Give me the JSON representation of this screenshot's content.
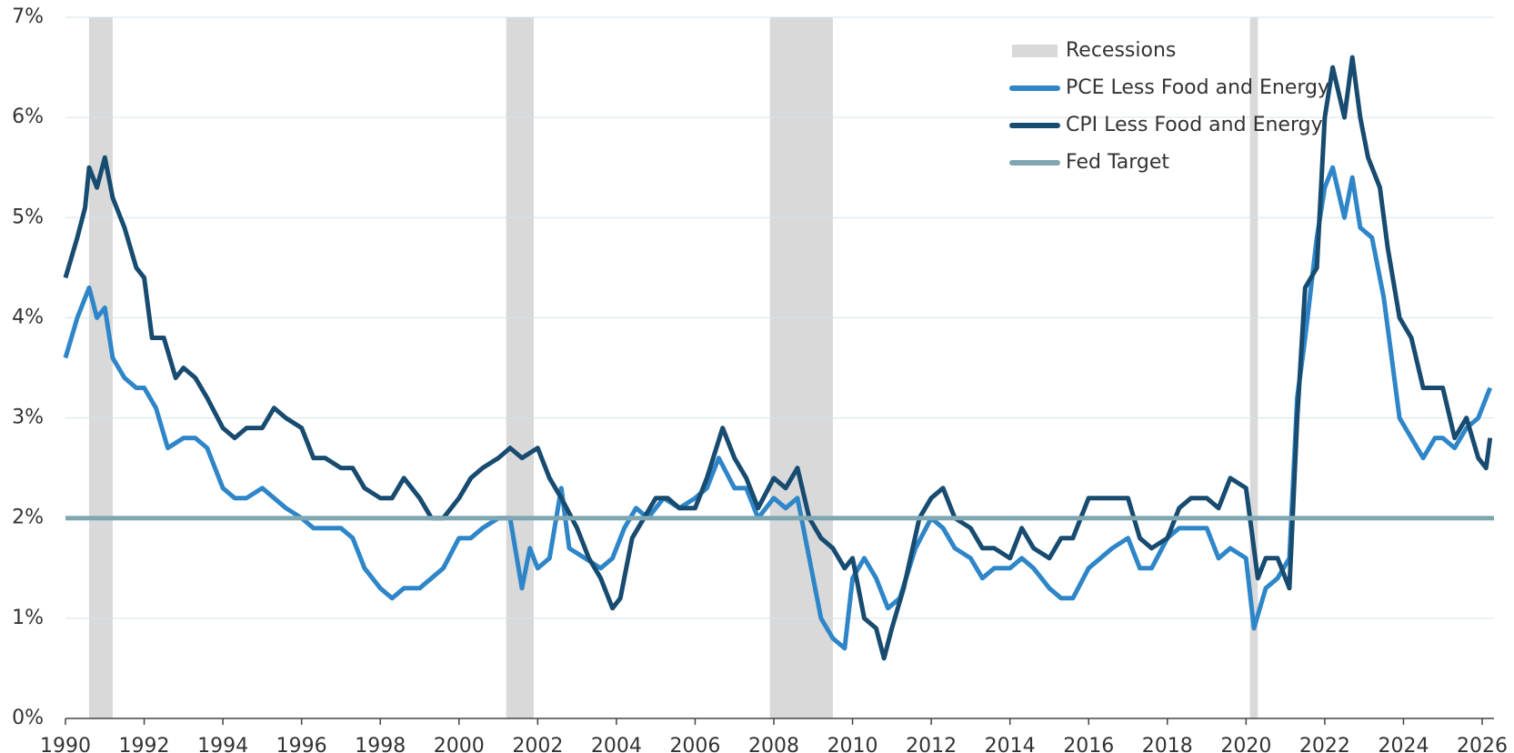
{
  "chart_data": {
    "type": "line",
    "xlim": [
      1990,
      2026.3
    ],
    "ylim": [
      0,
      7
    ],
    "xticks": [
      1990,
      1992,
      1994,
      1996,
      1998,
      2000,
      2002,
      2004,
      2006,
      2008,
      2010,
      2012,
      2014,
      2016,
      2018,
      2020,
      2022,
      2024,
      2026
    ],
    "yticks": [
      {
        "value": 0,
        "label": "0%"
      },
      {
        "value": 1,
        "label": "1%"
      },
      {
        "value": 2,
        "label": "2%"
      },
      {
        "value": 3,
        "label": "3%"
      },
      {
        "value": 4,
        "label": "4%"
      },
      {
        "value": 5,
        "label": "5%"
      },
      {
        "value": 6,
        "label": "6%"
      },
      {
        "value": 7,
        "label": "7%"
      }
    ],
    "grid": true,
    "legend": "top-right",
    "recessions": {
      "name": "Recessions",
      "color": "#d9d9d9",
      "periods": [
        [
          1990.6,
          1991.2
        ],
        [
          2001.2,
          2001.9
        ],
        [
          2007.9,
          2009.5
        ],
        [
          2020.1,
          2020.3
        ]
      ]
    },
    "series": [
      {
        "name": "PCE Less Food and Energy",
        "color": "#2e86c8",
        "x": [
          1990.0,
          1990.3,
          1990.6,
          1990.8,
          1991.0,
          1991.2,
          1991.5,
          1991.8,
          1992.0,
          1992.3,
          1992.6,
          1993.0,
          1993.3,
          1993.6,
          1994.0,
          1994.3,
          1994.6,
          1995.0,
          1995.3,
          1995.6,
          1996.0,
          1996.3,
          1996.6,
          1997.0,
          1997.3,
          1997.6,
          1998.0,
          1998.3,
          1998.6,
          1999.0,
          1999.3,
          1999.6,
          2000.0,
          2000.3,
          2000.6,
          2001.0,
          2001.3,
          2001.6,
          2001.8,
          2002.0,
          2002.3,
          2002.6,
          2002.8,
          2003.2,
          2003.6,
          2003.9,
          2004.2,
          2004.5,
          2004.8,
          2005.2,
          2005.6,
          2006.0,
          2006.3,
          2006.6,
          2007.0,
          2007.3,
          2007.6,
          2008.0,
          2008.3,
          2008.6,
          2008.9,
          2009.2,
          2009.5,
          2009.8,
          2010.0,
          2010.3,
          2010.6,
          2010.9,
          2011.2,
          2011.6,
          2012.0,
          2012.3,
          2012.6,
          2013.0,
          2013.3,
          2013.6,
          2014.0,
          2014.3,
          2014.6,
          2015.0,
          2015.3,
          2015.6,
          2016.0,
          2016.3,
          2016.6,
          2017.0,
          2017.3,
          2017.6,
          2018.0,
          2018.3,
          2018.6,
          2019.0,
          2019.3,
          2019.6,
          2020.0,
          2020.2,
          2020.5,
          2020.8,
          2021.1,
          2021.3,
          2021.5,
          2021.8,
          2022.0,
          2022.2,
          2022.5,
          2022.7,
          2022.9,
          2023.2,
          2023.5,
          2023.7,
          2023.9,
          2024.2,
          2024.5,
          2024.8,
          2025.0,
          2025.3,
          2025.6,
          2025.9,
          2026.2
        ],
        "values": [
          3.6,
          4.0,
          4.3,
          4.0,
          4.1,
          3.6,
          3.4,
          3.3,
          3.3,
          3.1,
          2.7,
          2.8,
          2.8,
          2.7,
          2.3,
          2.2,
          2.2,
          2.3,
          2.2,
          2.1,
          2.0,
          1.9,
          1.9,
          1.9,
          1.8,
          1.5,
          1.3,
          1.2,
          1.3,
          1.3,
          1.4,
          1.5,
          1.8,
          1.8,
          1.9,
          2.0,
          2.0,
          1.3,
          1.7,
          1.5,
          1.6,
          2.3,
          1.7,
          1.6,
          1.5,
          1.6,
          1.9,
          2.1,
          2.0,
          2.2,
          2.1,
          2.2,
          2.3,
          2.6,
          2.3,
          2.3,
          2.0,
          2.2,
          2.1,
          2.2,
          1.6,
          1.0,
          0.8,
          0.7,
          1.4,
          1.6,
          1.4,
          1.1,
          1.2,
          1.7,
          2.0,
          1.9,
          1.7,
          1.6,
          1.4,
          1.5,
          1.5,
          1.6,
          1.5,
          1.3,
          1.2,
          1.2,
          1.5,
          1.6,
          1.7,
          1.8,
          1.5,
          1.5,
          1.8,
          1.9,
          1.9,
          1.9,
          1.6,
          1.7,
          1.6,
          0.9,
          1.3,
          1.4,
          1.6,
          3.2,
          3.8,
          4.8,
          5.3,
          5.5,
          5.0,
          5.4,
          4.9,
          4.8,
          4.2,
          3.6,
          3.0,
          2.8,
          2.6,
          2.8,
          2.8,
          2.7,
          2.9,
          3.0,
          3.3
        ]
      },
      {
        "name": "CPI Less Food and Energy",
        "color": "#174b70",
        "x": [
          1990.0,
          1990.3,
          1990.5,
          1990.6,
          1990.8,
          1991.0,
          1991.2,
          1991.5,
          1991.8,
          1992.0,
          1992.2,
          1992.5,
          1992.8,
          1993.0,
          1993.3,
          1993.6,
          1994.0,
          1994.3,
          1994.6,
          1995.0,
          1995.3,
          1995.6,
          1996.0,
          1996.3,
          1996.6,
          1997.0,
          1997.3,
          1997.6,
          1998.0,
          1998.3,
          1998.6,
          1999.0,
          1999.3,
          1999.6,
          2000.0,
          2000.3,
          2000.6,
          2001.0,
          2001.3,
          2001.6,
          2002.0,
          2002.3,
          2002.6,
          2003.0,
          2003.3,
          2003.6,
          2003.9,
          2004.1,
          2004.4,
          2004.7,
          2005.0,
          2005.3,
          2005.6,
          2006.0,
          2006.3,
          2006.7,
          2007.0,
          2007.3,
          2007.6,
          2008.0,
          2008.3,
          2008.6,
          2008.9,
          2009.2,
          2009.5,
          2009.8,
          2010.0,
          2010.3,
          2010.6,
          2010.8,
          2011.0,
          2011.3,
          2011.7,
          2012.0,
          2012.3,
          2012.6,
          2013.0,
          2013.3,
          2013.6,
          2014.0,
          2014.3,
          2014.6,
          2015.0,
          2015.3,
          2015.6,
          2016.0,
          2016.3,
          2016.6,
          2017.0,
          2017.3,
          2017.6,
          2018.0,
          2018.3,
          2018.6,
          2019.0,
          2019.3,
          2019.6,
          2020.0,
          2020.3,
          2020.5,
          2020.8,
          2021.1,
          2021.3,
          2021.5,
          2021.8,
          2022.0,
          2022.2,
          2022.5,
          2022.7,
          2022.9,
          2023.1,
          2023.4,
          2023.6,
          2023.9,
          2024.2,
          2024.5,
          2024.8,
          2025.0,
          2025.3,
          2025.6,
          2025.9,
          2026.1,
          2026.2
        ],
        "values": [
          4.4,
          4.8,
          5.1,
          5.5,
          5.3,
          5.6,
          5.2,
          4.9,
          4.5,
          4.4,
          3.8,
          3.8,
          3.4,
          3.5,
          3.4,
          3.2,
          2.9,
          2.8,
          2.9,
          2.9,
          3.1,
          3.0,
          2.9,
          2.6,
          2.6,
          2.5,
          2.5,
          2.3,
          2.2,
          2.2,
          2.4,
          2.2,
          2.0,
          2.0,
          2.2,
          2.4,
          2.5,
          2.6,
          2.7,
          2.6,
          2.7,
          2.4,
          2.2,
          1.9,
          1.6,
          1.4,
          1.1,
          1.2,
          1.8,
          2.0,
          2.2,
          2.2,
          2.1,
          2.1,
          2.4,
          2.9,
          2.6,
          2.4,
          2.1,
          2.4,
          2.3,
          2.5,
          2.0,
          1.8,
          1.7,
          1.5,
          1.6,
          1.0,
          0.9,
          0.6,
          0.9,
          1.3,
          2.0,
          2.2,
          2.3,
          2.0,
          1.9,
          1.7,
          1.7,
          1.6,
          1.9,
          1.7,
          1.6,
          1.8,
          1.8,
          2.2,
          2.2,
          2.2,
          2.2,
          1.8,
          1.7,
          1.8,
          2.1,
          2.2,
          2.2,
          2.1,
          2.4,
          2.3,
          1.4,
          1.6,
          1.6,
          1.3,
          3.0,
          4.3,
          4.5,
          6.0,
          6.5,
          6.0,
          6.6,
          6.0,
          5.6,
          5.3,
          4.7,
          4.0,
          3.8,
          3.3,
          3.3,
          3.3,
          2.8,
          3.0,
          2.6,
          2.5,
          2.8
        ]
      },
      {
        "name": "Fed Target",
        "color": "#7fa7b2",
        "x": [
          1990,
          2026.3
        ],
        "values": [
          2,
          2
        ]
      }
    ]
  }
}
